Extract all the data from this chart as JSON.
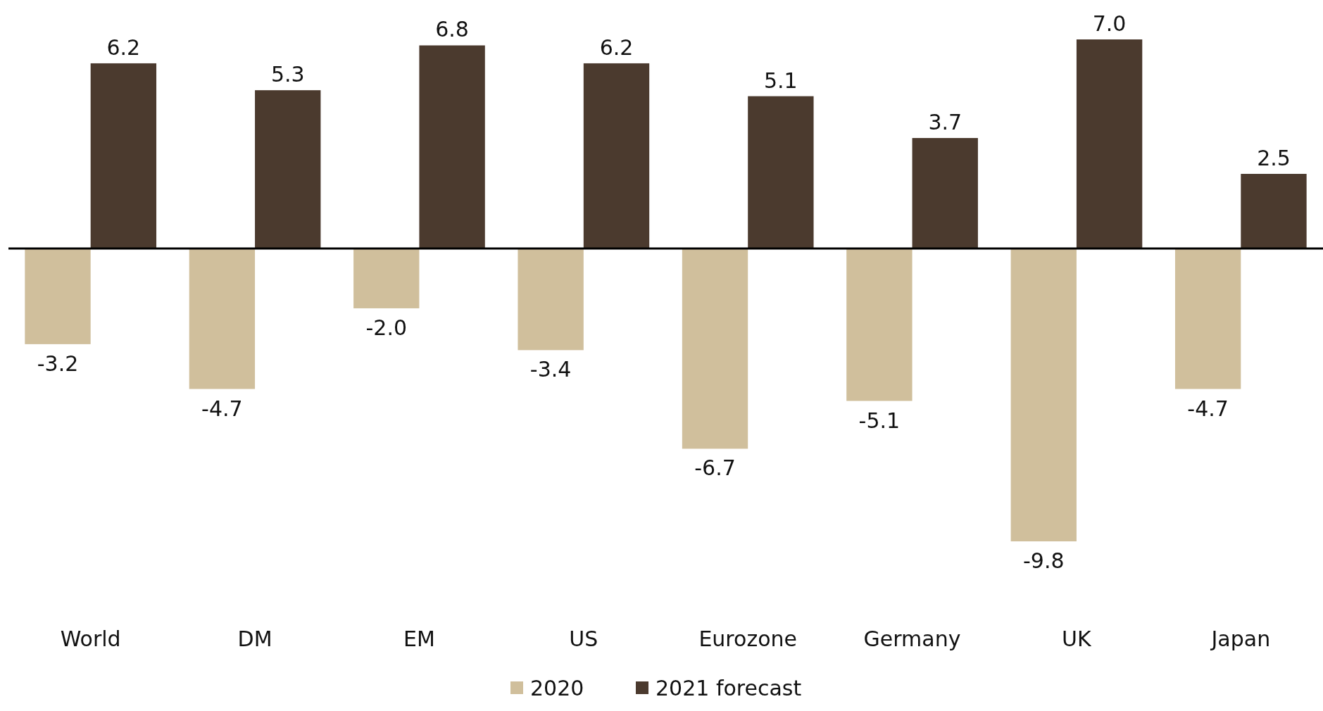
{
  "chart_data": {
    "type": "bar",
    "categories": [
      "World",
      "DM",
      "EM",
      "US",
      "Eurozone",
      "Germany",
      "UK",
      "Japan"
    ],
    "series": [
      {
        "name": "2020",
        "color": "#d0bf9c",
        "values": [
          -3.2,
          -4.7,
          -2.0,
          -3.4,
          -6.7,
          -5.1,
          -9.8,
          -4.7
        ],
        "value_labels": [
          "-3.2",
          "-4.7",
          "-2.0",
          "-3.4",
          "-6.7",
          "-5.1",
          "-9.8",
          "-4.7"
        ]
      },
      {
        "name": "2021 forecast",
        "color": "#4b3a2e",
        "values": [
          6.2,
          5.3,
          6.8,
          6.2,
          5.1,
          3.7,
          7.0,
          2.5
        ],
        "value_labels": [
          "6.2",
          "5.3",
          "6.8",
          "6.2",
          "5.1",
          "3.7",
          "7.0",
          "2.5"
        ]
      }
    ],
    "legend": "bottom"
  }
}
